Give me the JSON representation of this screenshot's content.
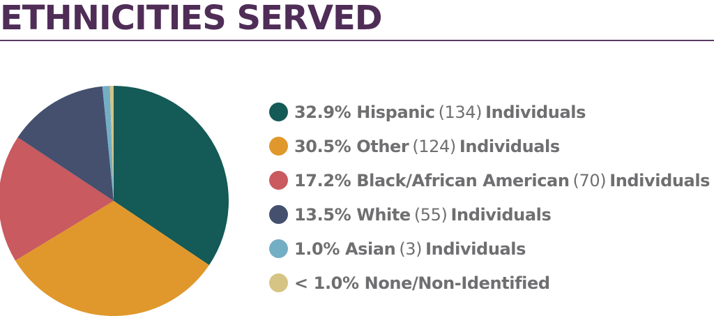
{
  "title": "ETHNICITIES SERVED",
  "colors": {
    "title": "#4f2d57",
    "rule": "#5b3a63",
    "legend_text": "#6f6f71"
  },
  "chart_data": {
    "type": "pie",
    "title": "ETHNICITIES SERVED",
    "slices": [
      {
        "label": "Hispanic",
        "percent": 32.9,
        "percent_text": "32.9%",
        "count": 134,
        "count_text": "(134)",
        "unit": "Individuals",
        "color": "#145a56"
      },
      {
        "label": "Other",
        "percent": 30.5,
        "percent_text": "30.5%",
        "count": 124,
        "count_text": "(124)",
        "unit": "Individuals",
        "color": "#e0982c"
      },
      {
        "label": "Black/African American",
        "percent": 17.2,
        "percent_text": "17.2%",
        "count": 70,
        "count_text": "(70)",
        "unit": "Individuals",
        "color": "#c95a5f"
      },
      {
        "label": "White",
        "percent": 13.5,
        "percent_text": "13.5%",
        "count": 55,
        "count_text": "(55)",
        "unit": "Individuals",
        "color": "#44506e"
      },
      {
        "label": "Asian",
        "percent": 1.0,
        "percent_text": "1.0%",
        "count": 3,
        "count_text": "(3)",
        "unit": "Individuals",
        "color": "#74aec4"
      },
      {
        "label": "None/Non-Identified",
        "percent": 0.5,
        "percent_text": "< 1.0%",
        "count": null,
        "count_text": "",
        "unit": "",
        "color": "#d5c483"
      }
    ]
  }
}
